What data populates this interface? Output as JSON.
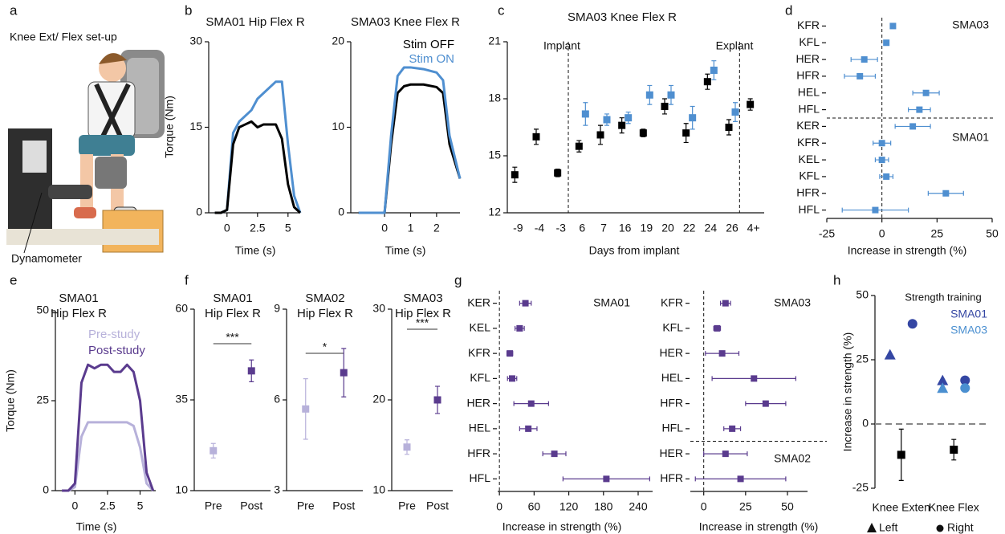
{
  "panel_a": {
    "panel": "a",
    "title": "Knee Ext/ Flex set-up",
    "callout": "Dynamometer"
  },
  "chart_data": [
    {
      "type": "line",
      "panel": "b",
      "title": "SMA01 Hip Flex R",
      "xlabel": "Time (s)",
      "ylabel": "Torque (Nm)",
      "x": [
        -1,
        -0.5,
        0,
        0.5,
        1,
        1.5,
        2,
        2.5,
        3,
        3.5,
        4,
        4.5,
        5,
        5.5,
        6
      ],
      "xlim": [
        -1.5,
        6
      ],
      "xticks": [
        0,
        2.5,
        5
      ],
      "ylim": [
        0,
        30
      ],
      "yticks": [
        0,
        15,
        30
      ],
      "series": [
        {
          "color": "#4f8fd0",
          "values": [
            0,
            0,
            0.5,
            14,
            16,
            17,
            18,
            20,
            21,
            22,
            23,
            23,
            12,
            3,
            0
          ]
        },
        {
          "color": "#000000",
          "values": [
            0,
            0,
            0.5,
            12,
            15,
            15.5,
            16,
            15,
            15.5,
            15.5,
            15.5,
            13,
            5,
            1,
            0
          ]
        }
      ]
    },
    {
      "type": "line",
      "title": "SMA03 Knee Flex R",
      "xlabel": "Time (s)",
      "x": [
        -1,
        -0.5,
        0,
        0.25,
        0.5,
        0.75,
        1,
        1.5,
        2,
        2.25,
        2.5,
        2.9
      ],
      "xlim": [
        -1.3,
        2.9
      ],
      "xticks": [
        0,
        1,
        2
      ],
      "ylim": [
        0,
        20
      ],
      "yticks": [
        0,
        10,
        20
      ],
      "series": [
        {
          "name": "Stim OFF",
          "color": "#000000",
          "values": [
            0,
            0,
            0,
            8,
            14,
            14.8,
            15,
            15,
            14.7,
            14,
            8,
            4
          ]
        },
        {
          "name": "Stim ON",
          "color": "#4f8fd0",
          "values": [
            0,
            0,
            0,
            9,
            16,
            17,
            17,
            16.8,
            16.4,
            15.5,
            9,
            4
          ]
        }
      ]
    },
    {
      "type": "dot",
      "panel": "c",
      "title": "SMA03 Knee Flex R",
      "xlabel": "Days from implant",
      "annotations": [
        "Implant",
        "Explant"
      ],
      "categories": [
        "-9",
        "-4",
        "-3",
        "6",
        "7",
        "16",
        "19",
        "20",
        "22",
        "24",
        "26",
        "4+"
      ],
      "ylim": [
        12,
        21
      ],
      "yticks": [
        12,
        15,
        18,
        21
      ],
      "series": [
        {
          "color": "#000000",
          "values": [
            14.0,
            16.0,
            14.1,
            15.5,
            16.1,
            16.6,
            16.2,
            17.6,
            16.2,
            18.9,
            16.5,
            17.7
          ],
          "errors": [
            0.4,
            0.4,
            0.2,
            0.3,
            0.5,
            0.4,
            0.2,
            0.4,
            0.5,
            0.4,
            0.4,
            0.3
          ]
        },
        {
          "color": "#4f8fd0",
          "values": [
            null,
            null,
            null,
            17.2,
            16.9,
            17.0,
            18.2,
            18.2,
            17.0,
            19.5,
            17.3,
            null
          ],
          "errors": [
            null,
            null,
            null,
            0.6,
            0.3,
            0.3,
            0.5,
            0.5,
            0.6,
            0.5,
            0.5,
            null
          ]
        }
      ]
    },
    {
      "type": "hdot",
      "panel": "d",
      "xlabel": "Increase in strength (%)",
      "groups": [
        "SMA03",
        "SMA01"
      ],
      "color": "#4f8fd0",
      "categories": [
        "KFR",
        "KFL",
        "HER",
        "HFR",
        "HEL",
        "HFL",
        "KER",
        "KFR",
        "KEL",
        "KFL",
        "HFR",
        "HFL"
      ],
      "values": [
        5,
        2,
        -8,
        -10,
        20,
        17,
        14,
        0,
        0,
        2,
        29,
        -3
      ],
      "errors": [
        1,
        1,
        6,
        7,
        6,
        5,
        8,
        4,
        3,
        3,
        8,
        15
      ],
      "xlim": [
        -25,
        50
      ],
      "xticks": [
        -25,
        0,
        25,
        50
      ]
    },
    {
      "type": "line",
      "panel": "e",
      "title": "SMA01",
      "subtitle": "Hip Flex R",
      "xlabel": "Time (s)",
      "ylabel": "Torque (Nm)",
      "x": [
        -1,
        -0.5,
        0,
        0.5,
        1,
        1.5,
        2,
        2.5,
        3,
        3.5,
        4,
        4.5,
        5,
        5.5,
        6
      ],
      "xlim": [
        -1.5,
        6.2
      ],
      "xticks": [
        0,
        2.5,
        5
      ],
      "ylim": [
        0,
        50
      ],
      "yticks": [
        0,
        25,
        50
      ],
      "series": [
        {
          "name": "Pre-study",
          "color": "#b7b1da",
          "values": [
            0,
            0,
            1,
            15,
            19,
            19,
            19,
            19,
            19,
            19,
            19,
            18,
            12,
            2,
            0
          ]
        },
        {
          "name": "Post-study",
          "color": "#5a3b8e",
          "values": [
            0,
            0,
            2,
            30,
            35,
            34,
            35,
            35,
            33,
            33,
            35,
            33,
            25,
            5,
            0
          ]
        }
      ]
    },
    {
      "type": "dot",
      "panel": "f",
      "title": "SMA01",
      "subtitle": "Hip Flex R",
      "annotations": [
        "***"
      ],
      "categories": [
        "Pre",
        "Post"
      ],
      "ylim": [
        10,
        60
      ],
      "yticks": [
        10,
        35,
        60
      ],
      "values": [
        21,
        43
      ],
      "errors": [
        2,
        3
      ],
      "colors": [
        "#b7b1da",
        "#5a3b8e"
      ]
    },
    {
      "type": "dot",
      "title": "SMA02",
      "subtitle": "Hip Flex R",
      "annotations": [
        "*"
      ],
      "categories": [
        "Pre",
        "Post"
      ],
      "ylim": [
        3,
        9
      ],
      "yticks": [
        3,
        6,
        9
      ],
      "values": [
        5.7,
        6.9
      ],
      "errors": [
        1,
        0.8
      ],
      "colors": [
        "#b7b1da",
        "#5a3b8e"
      ]
    },
    {
      "type": "dot",
      "title": "SMA03",
      "subtitle": "Hip Flex R",
      "annotations": [
        "***"
      ],
      "categories": [
        "Pre",
        "Post"
      ],
      "ylim": [
        10,
        30
      ],
      "yticks": [
        10,
        20,
        30
      ],
      "values": [
        14.8,
        20
      ],
      "errors": [
        0.8,
        1.5
      ],
      "colors": [
        "#b7b1da",
        "#5a3b8e"
      ]
    },
    {
      "type": "hdot",
      "panel": "g",
      "xlabel": "Increase in strength (%)",
      "groups": [
        "SMA01"
      ],
      "color": "#5a3b8e",
      "categories": [
        "KER",
        "KEL",
        "KFR",
        "KFL",
        "HER",
        "HEL",
        "HFR",
        "HFL"
      ],
      "values": [
        45,
        35,
        18,
        22,
        55,
        50,
        95,
        185
      ],
      "errors": [
        10,
        8,
        5,
        8,
        30,
        15,
        20,
        75
      ],
      "xlim": [
        -3,
        265
      ],
      "xticks": [
        0,
        60,
        120,
        180,
        240
      ]
    },
    {
      "type": "hdot",
      "xlabel": "Increase in strength (%)",
      "groups": [
        "SMA03",
        "SMA02"
      ],
      "color": "#5a3b8e",
      "categories": [
        "KFR",
        "KFL",
        "HER",
        "HEL",
        "HFR",
        "HFL",
        "HER",
        "HFR"
      ],
      "values": [
        13,
        8,
        11,
        30,
        37,
        17,
        13,
        22
      ],
      "errors": [
        3,
        2,
        10,
        25,
        12,
        5,
        13,
        27
      ],
      "xlim": [
        -8,
        62
      ],
      "xticks": [
        0,
        25,
        50
      ]
    },
    {
      "type": "marker",
      "panel": "h",
      "ylabel": "Increase in strength (%)",
      "legend_title": "Strength training",
      "markers": [
        "Left",
        "Right"
      ],
      "categories": [
        "Knee Exten",
        "Knee Flex"
      ],
      "ylim": [
        -25,
        50
      ],
      "yticks": [
        -25,
        0,
        25,
        50
      ],
      "series": [
        {
          "name": "SMA01",
          "color": "#3446a3",
          "left": [
            27,
            17
          ],
          "right": [
            39,
            17
          ]
        },
        {
          "name": "SMA03",
          "color": "#4a8fd0",
          "left": [
            null,
            14
          ],
          "right": [
            null,
            14
          ]
        },
        {
          "color": "#000000",
          "values": [
            -12,
            -10
          ],
          "errors": [
            10,
            4
          ]
        }
      ]
    }
  ]
}
